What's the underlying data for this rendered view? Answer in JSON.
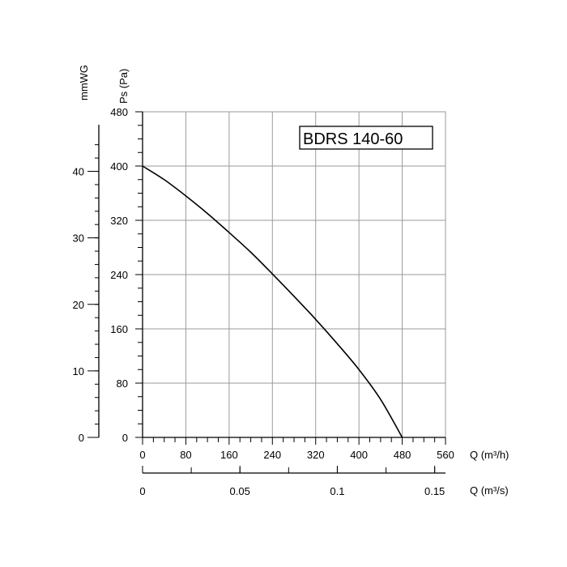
{
  "chart_data": {
    "type": "line",
    "title": "BDRS 140-60",
    "x_axis": {
      "label": "Q (m³/h)",
      "range": [
        0,
        560
      ],
      "ticks": [
        0,
        80,
        160,
        240,
        320,
        400,
        480,
        560
      ],
      "tick_labels": [
        "0",
        "80",
        "160",
        "240",
        "320",
        "400",
        "480",
        "560"
      ]
    },
    "x_axis_secondary": {
      "label": "Q (m³/s)",
      "range": [
        0,
        0.15555
      ],
      "ticks": [
        0,
        0.05,
        0.1,
        0.15
      ],
      "tick_labels": [
        "0",
        "0.05",
        "0.1",
        "0.15"
      ]
    },
    "y_axis": {
      "label": "Ps (Pa)",
      "range": [
        0,
        480
      ],
      "ticks": [
        0,
        80,
        160,
        240,
        320,
        400,
        480
      ],
      "tick_labels": [
        "0",
        "80",
        "160",
        "240",
        "320",
        "400",
        "480"
      ]
    },
    "y_axis_secondary": {
      "label": "mmWG",
      "range": [
        0,
        48.95
      ],
      "ticks": [
        0,
        10,
        20,
        30,
        40
      ],
      "tick_labels": [
        "0",
        "10",
        "20",
        "30",
        "40"
      ]
    },
    "grid": true,
    "series": [
      {
        "color": "#000000",
        "points": [
          {
            "x": 0,
            "y": 400
          },
          {
            "x": 40,
            "y": 380
          },
          {
            "x": 80,
            "y": 356
          },
          {
            "x": 120,
            "y": 330
          },
          {
            "x": 160,
            "y": 302
          },
          {
            "x": 200,
            "y": 273
          },
          {
            "x": 240,
            "y": 241
          },
          {
            "x": 280,
            "y": 208
          },
          {
            "x": 320,
            "y": 174
          },
          {
            "x": 360,
            "y": 138
          },
          {
            "x": 400,
            "y": 100
          },
          {
            "x": 440,
            "y": 56
          },
          {
            "x": 480,
            "y": 0
          }
        ]
      }
    ]
  }
}
